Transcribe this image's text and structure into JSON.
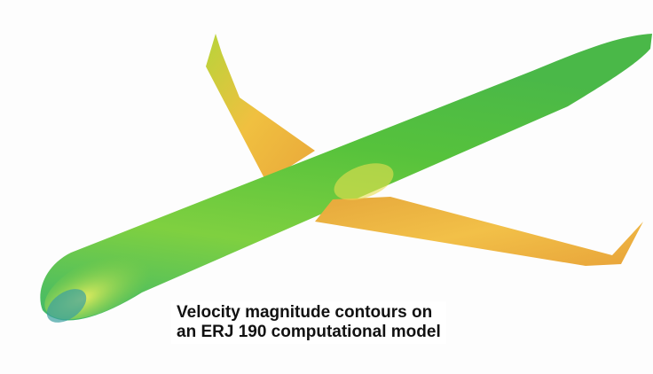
{
  "caption": {
    "lines": [
      "Velocity magnitude contours on",
      "an ERJ 190 computational model"
    ]
  }
}
